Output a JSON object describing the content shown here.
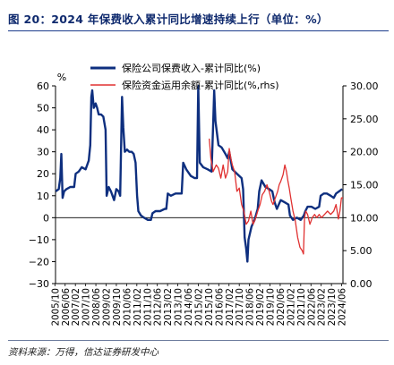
{
  "title": "图 20：2024 年保费收入累计同比增速持续上行（单位：%）",
  "source": "资料来源：万得，信达证券研发中心",
  "chart_data": {
    "type": "line",
    "left_unit": "%",
    "left_ylim": [
      -30,
      60
    ],
    "left_ticks": [
      "60",
      "50",
      "40",
      "30",
      "20",
      "10",
      "0",
      "−10",
      "−20",
      "−30"
    ],
    "right_ylim": [
      0,
      30
    ],
    "right_ticks": [
      "30.00",
      "25.00",
      "20.00",
      "15.00",
      "10.00",
      "5.00",
      "0.00"
    ],
    "x_start": 2005.79,
    "x_end": 2024.5,
    "x_ticks": [
      "2005/10",
      "2006/06",
      "2007/02",
      "2007/10",
      "2008/06",
      "2009/02",
      "2009/10",
      "2010/06",
      "2011/02",
      "2011/10",
      "2012/06",
      "2013/02",
      "2013/10",
      "2014/06",
      "2015/02",
      "2015/10",
      "2016/06",
      "2017/02",
      "2017/10",
      "2018/06",
      "2019/02",
      "2019/10",
      "2020/06",
      "2021/02",
      "2021/10",
      "2022/06",
      "2023/02",
      "2023/10",
      "2024/06"
    ],
    "series": [
      {
        "name": "保险公司保费收入-累计同比(%)",
        "axis": "left",
        "color": "#0e2f7f",
        "points": [
          [
            2005.8,
            12
          ],
          [
            2006.0,
            13
          ],
          [
            2006.1,
            18
          ],
          [
            2006.17,
            29
          ],
          [
            2006.25,
            9
          ],
          [
            2006.35,
            12
          ],
          [
            2006.5,
            13
          ],
          [
            2006.75,
            14
          ],
          [
            2007.0,
            14
          ],
          [
            2007.1,
            20
          ],
          [
            2007.3,
            21
          ],
          [
            2007.5,
            23
          ],
          [
            2007.75,
            22
          ],
          [
            2007.95,
            26
          ],
          [
            2008.05,
            33
          ],
          [
            2008.12,
            55
          ],
          [
            2008.18,
            58
          ],
          [
            2008.28,
            50
          ],
          [
            2008.4,
            52
          ],
          [
            2008.5,
            50
          ],
          [
            2008.6,
            47
          ],
          [
            2008.75,
            47
          ],
          [
            2008.9,
            46
          ],
          [
            2009.05,
            40
          ],
          [
            2009.12,
            10
          ],
          [
            2009.25,
            14
          ],
          [
            2009.4,
            12
          ],
          [
            2009.6,
            8
          ],
          [
            2009.75,
            13
          ],
          [
            2009.9,
            12
          ],
          [
            2010.0,
            10
          ],
          [
            2010.12,
            55
          ],
          [
            2010.2,
            41
          ],
          [
            2010.3,
            30
          ],
          [
            2010.45,
            31
          ],
          [
            2010.6,
            30
          ],
          [
            2010.75,
            30
          ],
          [
            2010.88,
            29
          ],
          [
            2011.0,
            25
          ],
          [
            2011.1,
            10
          ],
          [
            2011.18,
            3
          ],
          [
            2011.35,
            1
          ],
          [
            2011.55,
            0
          ],
          [
            2011.8,
            -1
          ],
          [
            2012.0,
            -1
          ],
          [
            2012.1,
            2
          ],
          [
            2012.3,
            3
          ],
          [
            2012.6,
            3
          ],
          [
            2012.9,
            4
          ],
          [
            2013.0,
            4
          ],
          [
            2013.1,
            11
          ],
          [
            2013.3,
            10
          ],
          [
            2013.6,
            11
          ],
          [
            2013.9,
            11
          ],
          [
            2014.0,
            11
          ],
          [
            2014.1,
            25
          ],
          [
            2014.3,
            22
          ],
          [
            2014.6,
            19
          ],
          [
            2014.85,
            18
          ],
          [
            2015.0,
            18
          ],
          [
            2015.08,
            60
          ],
          [
            2015.18,
            25
          ],
          [
            2015.4,
            23
          ],
          [
            2015.7,
            22
          ],
          [
            2015.95,
            21
          ],
          [
            2016.05,
            42
          ],
          [
            2016.12,
            58
          ],
          [
            2016.2,
            44
          ],
          [
            2016.4,
            33
          ],
          [
            2016.6,
            32
          ],
          [
            2016.85,
            29
          ],
          [
            2017.0,
            27
          ],
          [
            2017.1,
            30
          ],
          [
            2017.3,
            22
          ],
          [
            2017.6,
            20
          ],
          [
            2017.9,
            18
          ],
          [
            2018.0,
            13
          ],
          [
            2018.1,
            -9
          ],
          [
            2018.2,
            -14
          ],
          [
            2018.28,
            -20
          ],
          [
            2018.35,
            -10
          ],
          [
            2018.55,
            -4
          ],
          [
            2018.75,
            -1
          ],
          [
            2018.95,
            4
          ],
          [
            2019.05,
            12
          ],
          [
            2019.2,
            17
          ],
          [
            2019.45,
            14
          ],
          [
            2019.7,
            13
          ],
          [
            2019.9,
            12
          ],
          [
            2020.05,
            7
          ],
          [
            2020.2,
            4
          ],
          [
            2020.45,
            8
          ],
          [
            2020.7,
            7
          ],
          [
            2020.95,
            6
          ],
          [
            2021.05,
            1
          ],
          [
            2021.25,
            -1
          ],
          [
            2021.5,
            0
          ],
          [
            2021.75,
            -1
          ],
          [
            2021.95,
            1
          ],
          [
            2022.05,
            3
          ],
          [
            2022.2,
            5
          ],
          [
            2022.45,
            5
          ],
          [
            2022.7,
            4
          ],
          [
            2022.95,
            5
          ],
          [
            2023.05,
            10
          ],
          [
            2023.25,
            11
          ],
          [
            2023.45,
            11
          ],
          [
            2023.7,
            10
          ],
          [
            2023.9,
            9
          ],
          [
            2024.05,
            11
          ],
          [
            2024.25,
            12
          ],
          [
            2024.45,
            13
          ]
        ]
      },
      {
        "name": "保险资金运用余额-累计同比(%,rhs)",
        "axis": "right",
        "color": "#e03131",
        "points": [
          [
            2015.8,
            22
          ],
          [
            2015.9,
            19
          ],
          [
            2016.05,
            17
          ],
          [
            2016.25,
            18
          ],
          [
            2016.4,
            17.5
          ],
          [
            2016.55,
            16
          ],
          [
            2016.7,
            18
          ],
          [
            2016.85,
            16
          ],
          [
            2017.0,
            17
          ],
          [
            2017.1,
            20.5
          ],
          [
            2017.2,
            19
          ],
          [
            2017.3,
            18
          ],
          [
            2017.45,
            17
          ],
          [
            2017.6,
            14
          ],
          [
            2017.75,
            14.5
          ],
          [
            2017.9,
            12
          ],
          [
            2018.05,
            11
          ],
          [
            2018.2,
            9
          ],
          [
            2018.35,
            9.5
          ],
          [
            2018.5,
            11
          ],
          [
            2018.65,
            9
          ],
          [
            2018.8,
            9.8
          ],
          [
            2018.95,
            11
          ],
          [
            2019.1,
            12
          ],
          [
            2019.25,
            13.5
          ],
          [
            2019.4,
            14
          ],
          [
            2019.55,
            15
          ],
          [
            2019.7,
            14
          ],
          [
            2019.85,
            12.5
          ],
          [
            2019.95,
            12
          ],
          [
            2020.1,
            13
          ],
          [
            2020.25,
            14
          ],
          [
            2020.35,
            15
          ],
          [
            2020.45,
            15.5
          ],
          [
            2020.6,
            16.5
          ],
          [
            2020.72,
            18
          ],
          [
            2020.82,
            17
          ],
          [
            2020.92,
            15.5
          ],
          [
            2021.0,
            14.5
          ],
          [
            2021.1,
            13
          ],
          [
            2021.25,
            11
          ],
          [
            2021.4,
            9.5
          ],
          [
            2021.55,
            7
          ],
          [
            2021.7,
            5.5
          ],
          [
            2021.85,
            5
          ],
          [
            2021.93,
            4.5
          ],
          [
            2022.0,
            10
          ],
          [
            2022.08,
            11
          ],
          [
            2022.2,
            10.5
          ],
          [
            2022.35,
            9
          ],
          [
            2022.5,
            10
          ],
          [
            2022.65,
            10.5
          ],
          [
            2022.8,
            10
          ],
          [
            2022.95,
            10.5
          ],
          [
            2023.1,
            10
          ],
          [
            2023.3,
            10.5
          ],
          [
            2023.5,
            11
          ],
          [
            2023.7,
            10.5
          ],
          [
            2023.9,
            11
          ],
          [
            2024.05,
            12
          ],
          [
            2024.2,
            9.8
          ],
          [
            2024.3,
            11
          ],
          [
            2024.4,
            13
          ],
          [
            2024.5,
            13
          ]
        ]
      }
    ]
  }
}
